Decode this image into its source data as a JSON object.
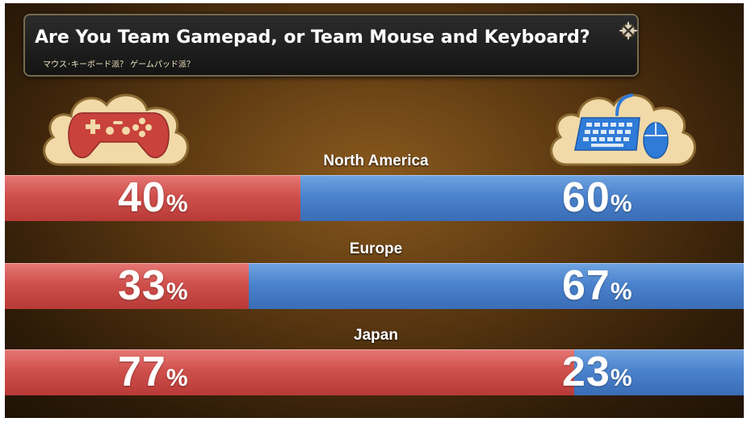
{
  "title": "Are You Team Gamepad, or Team Mouse and Keyboard?",
  "subtitle": "マウス･キーボード派？ ゲームパッド派？",
  "icons": {
    "left": "gamepad-icon",
    "right": "keyboard-mouse-icon",
    "corner": "close-icon"
  },
  "colors": {
    "gamepad": "#cf4f4b",
    "keyboard_mouse": "#4a82cc",
    "cloud": "#f1d9a8"
  },
  "chart_data": {
    "type": "bar",
    "stacked": true,
    "orientation": "horizontal",
    "categories": [
      "North America",
      "Europe",
      "Japan"
    ],
    "series": [
      {
        "values": [
          40,
          33,
          77
        ]
      },
      {
        "values": [
          60,
          67,
          23
        ]
      }
    ],
    "value_suffix": "%",
    "ylim": [
      0,
      100
    ]
  }
}
